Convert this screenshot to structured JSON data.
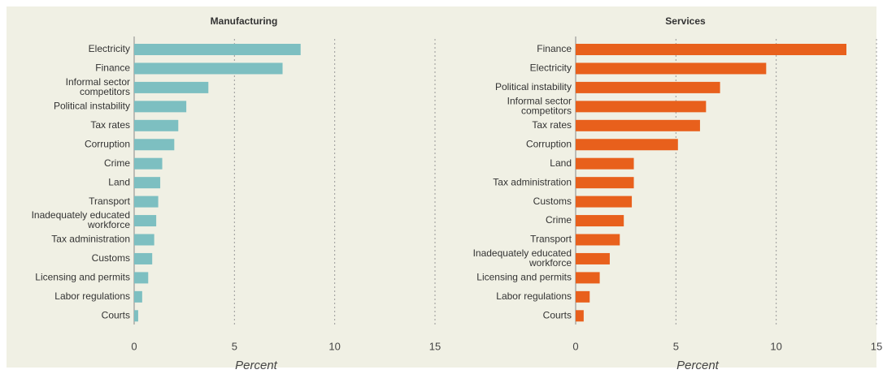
{
  "chart_data": [
    {
      "type": "barh",
      "title": "Manufacturing",
      "x_label": "Percent",
      "color": "#7dbfc1",
      "categories": [
        "Electricity",
        "Finance",
        "Informal sector competitors",
        "Political instability",
        "Tax rates",
        "Corruption",
        "Crime",
        "Land",
        "Transport",
        "Inadequately educated workforce",
        "Tax administration",
        "Customs",
        "Licensing and permits",
        "Labor regulations",
        "Courts"
      ],
      "values": [
        8.3,
        7.4,
        3.7,
        2.6,
        2.2,
        2.0,
        1.4,
        1.3,
        1.2,
        1.1,
        1.0,
        0.9,
        0.7,
        0.4,
        0.2
      ],
      "xlim": [
        0,
        15
      ],
      "xticks": [
        0,
        5,
        10,
        15
      ],
      "grid": true
    },
    {
      "type": "barh",
      "title": "Services",
      "x_label": "Percent",
      "color": "#e8601c",
      "categories": [
        "Finance",
        "Electricity",
        "Political instability",
        "Informal sector competitors",
        "Tax rates",
        "Corruption",
        "Land",
        "Tax administration",
        "Customs",
        "Crime",
        "Transport",
        "Inadequately educated workforce",
        "Licensing and permits",
        "Labor regulations",
        "Courts"
      ],
      "values": [
        13.5,
        9.5,
        7.2,
        6.5,
        6.2,
        5.1,
        2.9,
        2.9,
        2.8,
        2.4,
        2.2,
        1.7,
        1.2,
        0.7,
        0.4
      ],
      "xlim": [
        0,
        15
      ],
      "xticks": [
        0,
        5,
        10,
        15
      ],
      "grid": true
    }
  ]
}
